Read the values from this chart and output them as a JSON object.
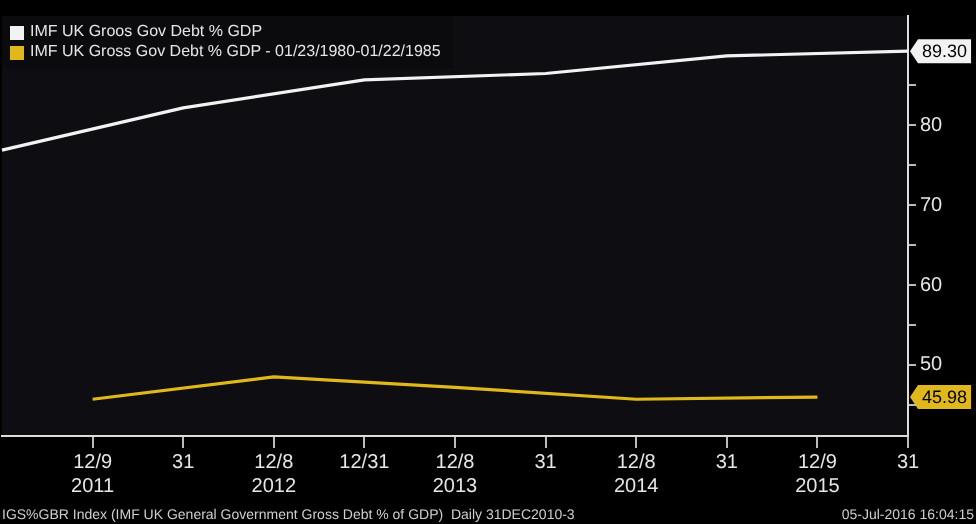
{
  "chart_data": {
    "type": "line",
    "categories": [
      null,
      "12/9\n2011",
      "31",
      "12/8\n2012",
      "12/31",
      "12/8\n2013",
      "31",
      "12/8\n2014",
      "31",
      "12/9\n2015",
      "31"
    ],
    "series": [
      {
        "name": "IMF UK Groos Gov Debt % GDP",
        "color": "#f2f2f2",
        "values": [
          76.9,
          null,
          82.2,
          null,
          85.7,
          null,
          86.5,
          null,
          88.7,
          null,
          89.3
        ]
      },
      {
        "name": "IMF UK Gross Gov Debt % GDP - 01/23/1980-01/22/1985",
        "color": "#e0b81c",
        "values": [
          null,
          45.7,
          null,
          48.5,
          null,
          47.2,
          null,
          45.7,
          null,
          45.98,
          null
        ]
      }
    ],
    "ylim": [
      41.1,
      93.7
    ],
    "yticks": [
      {
        "value": 45,
        "label": null
      },
      50,
      {
        "value": 55,
        "label": null
      },
      60,
      {
        "value": 65,
        "label": null
      },
      70,
      {
        "value": 75,
        "label": null
      },
      80,
      {
        "value": 85,
        "label": null
      }
    ],
    "grid": false,
    "legend": "top left",
    "marker": "none",
    "line_style": "solid",
    "annotations": [
      "89.30",
      "45.98",
      "IGS%GBR Index (IMF UK General Government Gross Debt % of GDP)  Daily 31DEC2010-3",
      "05-Jul-2016 16:04:15"
    ]
  }
}
